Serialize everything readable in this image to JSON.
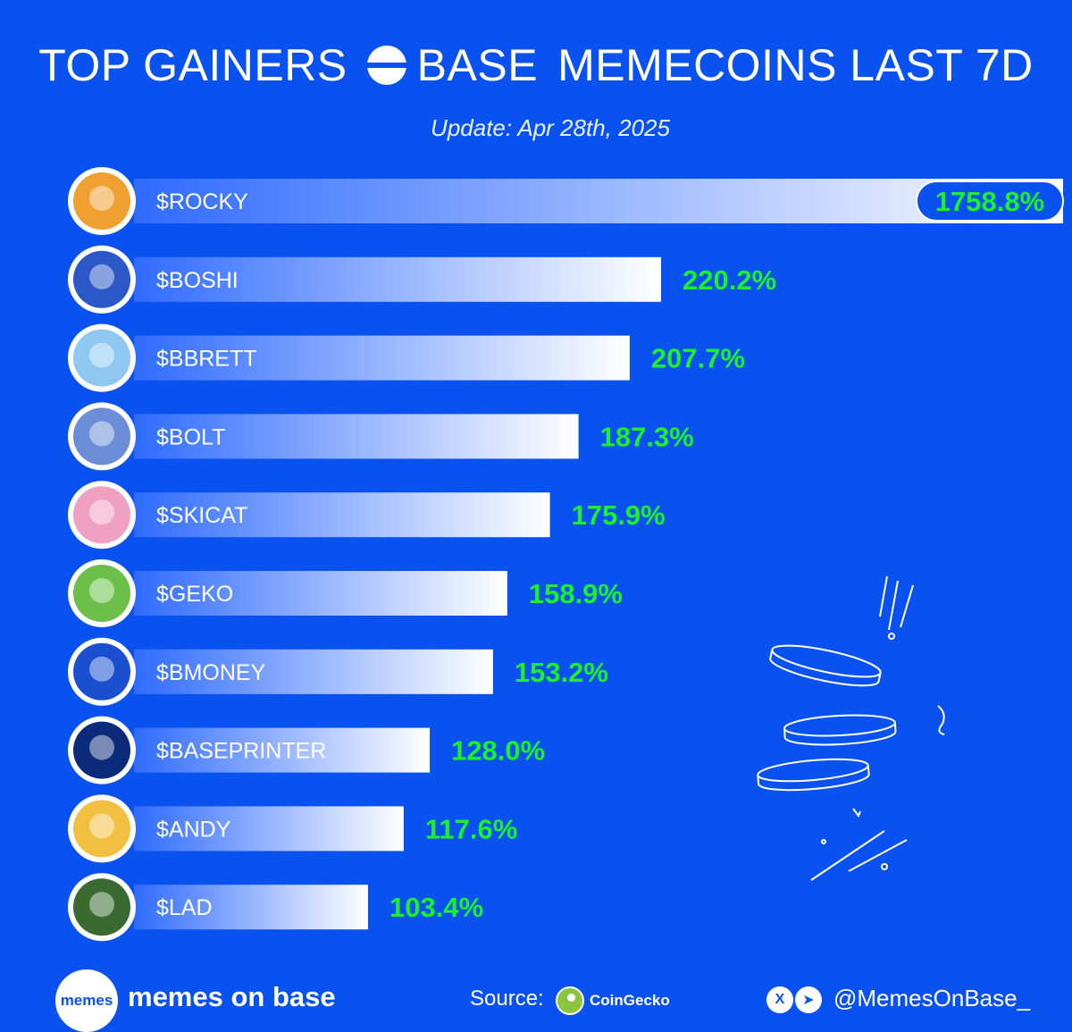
{
  "header": {
    "title_left": "TOP GAINERS",
    "title_right_1": "BASE",
    "title_right_2": "MEMECOINS LAST 7D",
    "subtitle": "Update: Apr 28th, 2025"
  },
  "colors": {
    "background": "#0a52f0",
    "value_green": "#1cf02c",
    "bar_end": "#ffffff",
    "bar_start": "#3a74ff"
  },
  "chart_data": {
    "type": "bar",
    "orientation": "horizontal",
    "categories": [
      "$ROCKY",
      "$BOSHI",
      "$BBRETT",
      "$BOLT",
      "$SKICAT",
      "$GEKO",
      "$BMONEY",
      "$BASEPRINTER",
      "$ANDY",
      "$LAD"
    ],
    "values": [
      1758.8,
      220.2,
      207.7,
      187.3,
      175.9,
      158.9,
      153.2,
      128.0,
      117.6,
      103.4
    ],
    "value_labels": [
      "1758.8%",
      "220.2%",
      "207.7%",
      "187.3%",
      "175.9%",
      "158.9%",
      "153.2%",
      "128.0%",
      "117.6%",
      "103.4%"
    ],
    "unit": "%",
    "icons": [
      "dog-avatar-icon",
      "dragon-avatar-icon",
      "bear-avatar-icon",
      "wolf-avatar-icon",
      "pig-avatar-icon",
      "gecko-avatar-icon",
      "money-frog-avatar-icon",
      "printer-avatar-icon",
      "andy-frog-avatar-icon",
      "lad-avatar-icon"
    ],
    "icon_colors": [
      "#f0a030",
      "#2b57c7",
      "#8ec8f0",
      "#6c8ed8",
      "#f0a0c0",
      "#6cc04a",
      "#1a4fd0",
      "#0c2a7a",
      "#f2c040",
      "#3a6a30"
    ],
    "grid": false,
    "legend": "none"
  },
  "footer": {
    "logo_text": "memes",
    "brand": "memes on base",
    "source_label": "Source:",
    "source_name": "CoinGecko",
    "social_x": "X",
    "social_tg": "➤",
    "handle": "@MemesOnBase_"
  }
}
